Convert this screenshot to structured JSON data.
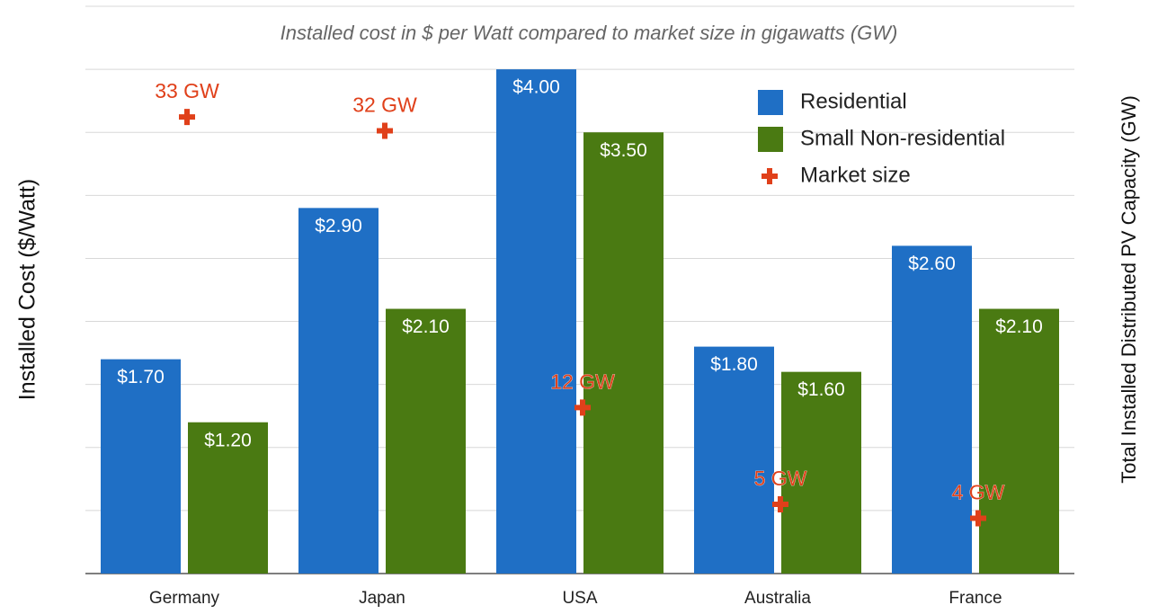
{
  "chart_data": {
    "type": "bar",
    "title": "Installed cost in $ per Watt compared to market size in gigawatts (GW)",
    "y_label": "Installed Cost ($/Watt)",
    "y2_label": "Total Installed Distributed PV Capacity (GW)",
    "categories": [
      "Germany",
      "Japan",
      "USA",
      "Australia",
      "France"
    ],
    "series": [
      {
        "name": "Residential",
        "color": "#1f6fc5",
        "values": [
          1.7,
          2.9,
          4.0,
          1.8,
          2.6
        ],
        "value_labels": [
          "$1.70",
          "$2.90",
          "$4.00",
          "$1.80",
          "$2.60"
        ]
      },
      {
        "name": "Small Non-residential",
        "color": "#4a7a12",
        "values": [
          1.2,
          2.1,
          3.5,
          1.6,
          2.1
        ],
        "value_labels": [
          "$1.20",
          "$2.10",
          "$3.50",
          "$1.60",
          "$2.10"
        ]
      },
      {
        "name": "Market size",
        "type": "scatter",
        "axis": "y2",
        "color": "#e0401a",
        "values": [
          33,
          32,
          12,
          5,
          4
        ],
        "value_labels": [
          "33 GW",
          "32 GW",
          "12 GW",
          "5 GW",
          "4 GW"
        ]
      }
    ],
    "ylim": [
      0,
      4.5
    ],
    "yticks": [
      0,
      0.5,
      1,
      1.5,
      2,
      2.5,
      3,
      3.5,
      4,
      4.5
    ],
    "y2lim": [
      0,
      41
    ],
    "grid": true,
    "legend": "upper right"
  }
}
